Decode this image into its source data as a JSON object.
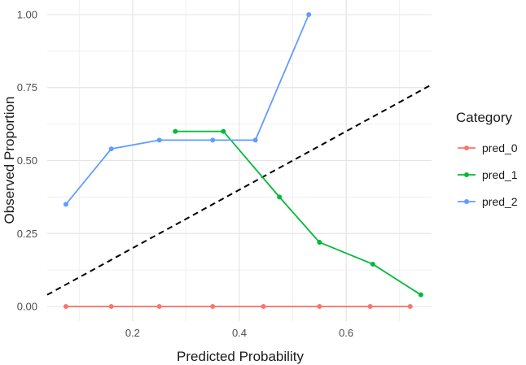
{
  "chart_data": {
    "type": "line",
    "xlabel": "Predicted Probability",
    "ylabel": "Observed Proportion",
    "xlim": [
      0.04,
      0.76
    ],
    "ylim": [
      -0.05,
      1.05
    ],
    "x_ticks": [
      0.2,
      0.4,
      0.6
    ],
    "x_tick_labels": [
      "0.2",
      "0.4",
      "0.6"
    ],
    "y_ticks": [
      0,
      0.25,
      0.5,
      0.75,
      1.0
    ],
    "y_tick_labels": [
      "0.00",
      "0.25",
      "0.50",
      "0.75",
      "1.00"
    ],
    "grid": true,
    "reference_line": {
      "style": "dashed",
      "color": "#000000",
      "slope": 1,
      "intercept": 0
    },
    "legend": {
      "title": "Category",
      "position": "right"
    },
    "series": [
      {
        "name": "pred_0",
        "color": "#F8766D",
        "x": [
          0.075,
          0.16,
          0.25,
          0.35,
          0.445,
          0.55,
          0.645,
          0.72
        ],
        "y": [
          0,
          0,
          0,
          0,
          0,
          0,
          0,
          0
        ]
      },
      {
        "name": "pred_1",
        "color": "#00BA38",
        "x": [
          0.28,
          0.37,
          0.475,
          0.55,
          0.65,
          0.74
        ],
        "y": [
          0.6,
          0.6,
          0.375,
          0.22,
          0.145,
          0.04
        ]
      },
      {
        "name": "pred_2",
        "color": "#619CFF",
        "x": [
          0.075,
          0.16,
          0.25,
          0.35,
          0.43,
          0.53
        ],
        "y": [
          0.35,
          0.54,
          0.57,
          0.57,
          0.57,
          1.0
        ]
      }
    ]
  }
}
